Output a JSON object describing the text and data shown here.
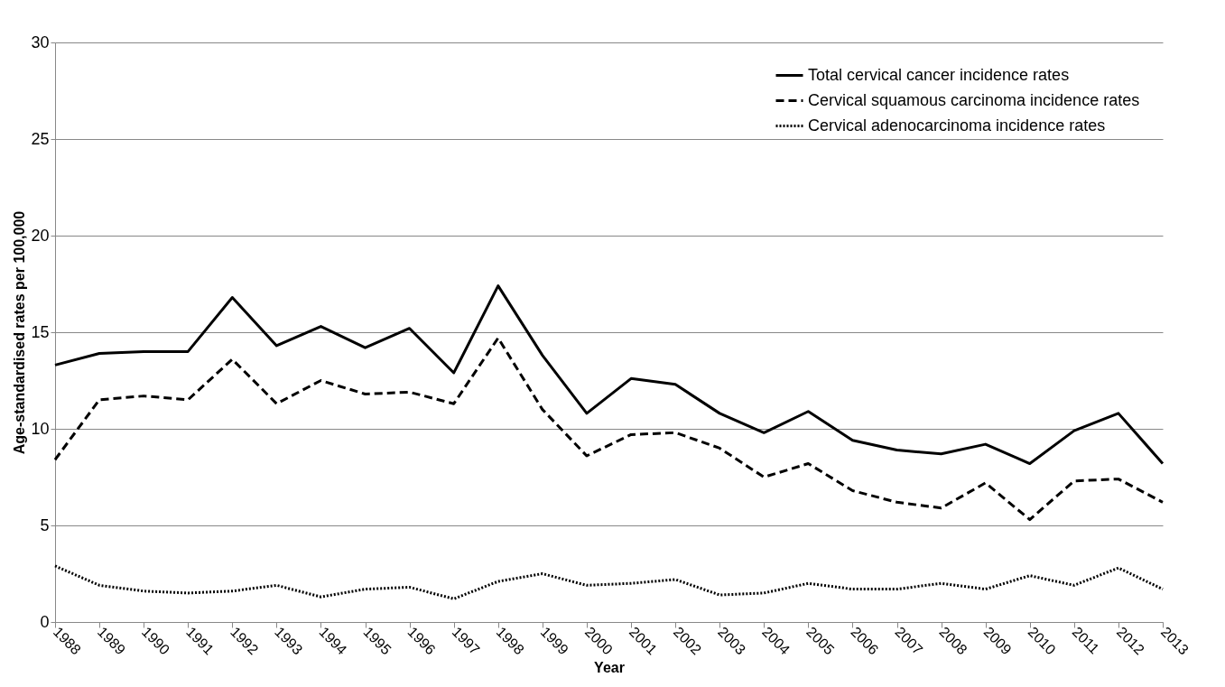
{
  "chart_data": {
    "type": "line",
    "xlabel": "Year",
    "ylabel": "Age-standardised rates per 100,000",
    "categories": [
      "1988",
      "1989",
      "1990",
      "1991",
      "1992",
      "1993",
      "1994",
      "1995",
      "1996",
      "1997",
      "1998",
      "1999",
      "2000",
      "2001",
      "2002",
      "2003",
      "2004",
      "2005",
      "2006",
      "2007",
      "2008",
      "2009",
      "2010",
      "2011",
      "2012",
      "2013"
    ],
    "series": [
      {
        "name": "Total cervical cancer incidence rates",
        "color": "#000000",
        "line_style": "solid",
        "values": [
          13.3,
          13.9,
          14.0,
          14.0,
          16.8,
          14.3,
          15.3,
          14.2,
          15.2,
          12.9,
          17.4,
          13.8,
          10.8,
          12.6,
          12.3,
          10.8,
          9.8,
          10.9,
          9.4,
          8.9,
          8.7,
          9.2,
          8.2,
          9.9,
          10.8,
          8.2
        ]
      },
      {
        "name": "Cervical squamous  carcinoma incidence rates",
        "color": "#000000",
        "line_style": "dashed",
        "values": [
          8.4,
          11.5,
          11.7,
          11.5,
          13.6,
          11.3,
          12.5,
          11.8,
          11.9,
          11.3,
          14.7,
          11.0,
          8.6,
          9.7,
          9.8,
          9.0,
          7.5,
          8.2,
          6.8,
          6.2,
          5.9,
          7.2,
          5.3,
          7.3,
          7.4,
          6.2
        ]
      },
      {
        "name": "Cervical adenocarcinoma incidence rates",
        "color": "#000000",
        "line_style": "dotted",
        "values": [
          2.9,
          1.9,
          1.6,
          1.5,
          1.6,
          1.9,
          1.3,
          1.7,
          1.8,
          1.2,
          2.1,
          2.5,
          1.9,
          2.0,
          2.2,
          1.4,
          1.5,
          2.0,
          1.7,
          1.7,
          2.0,
          1.7,
          2.4,
          1.9,
          2.8,
          1.7
        ]
      }
    ],
    "ylim": [
      0,
      30
    ],
    "yticks": [
      0,
      5,
      10,
      15,
      20,
      25,
      30
    ],
    "grid": "y",
    "legend": "top right"
  }
}
